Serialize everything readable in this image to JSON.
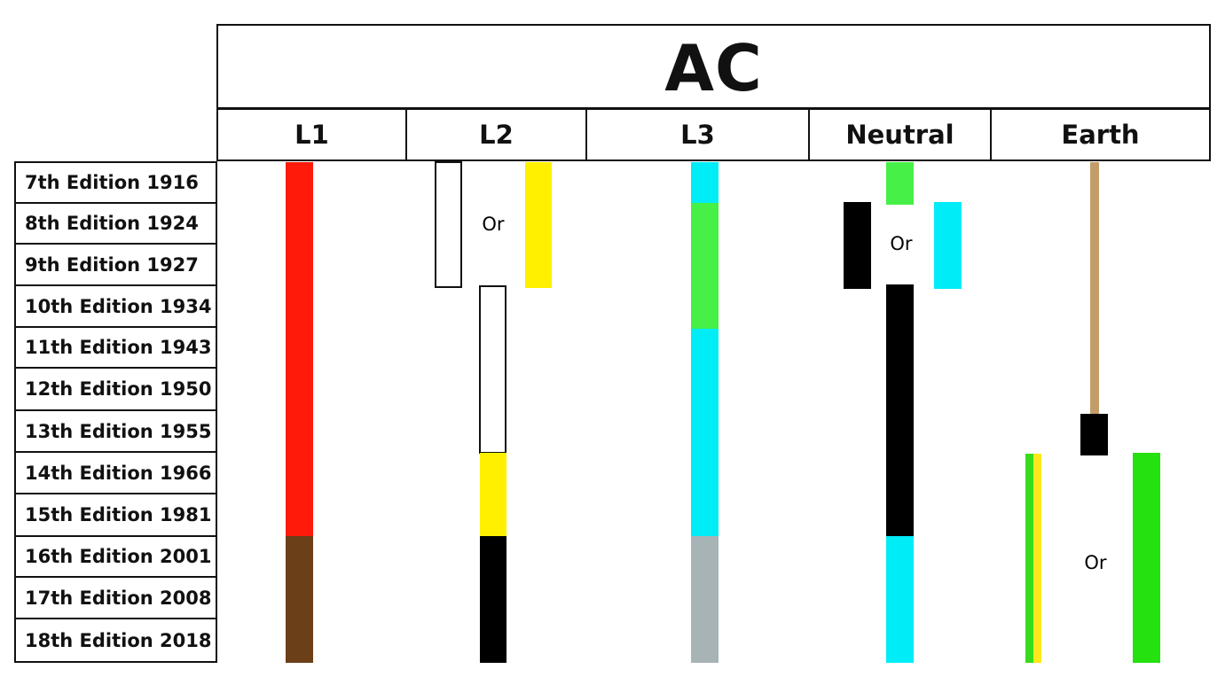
{
  "title": "AC",
  "columns": [
    {
      "key": "l1",
      "label": "L1"
    },
    {
      "key": "l2",
      "label": "L2"
    },
    {
      "key": "l3",
      "label": "L3"
    },
    {
      "key": "neutral",
      "label": "Neutral"
    },
    {
      "key": "earth",
      "label": "Earth"
    }
  ],
  "editions": [
    "7th Edition 1916",
    "8th Edition 1924",
    "9th Edition 1927",
    "10th Edition 1934",
    "11th Edition 1943",
    "12th Edition 1950",
    "13th Edition 1955",
    "14th Edition 1966",
    "15th Edition 1981",
    "16th Edition 2001",
    "17th Edition 2008",
    "18th Edition 2018"
  ],
  "or_label": "Or",
  "colors": {
    "red": "#ff1a0a",
    "brown": "#6b3f18",
    "yellow": "#fff000",
    "white": "#ffffff",
    "black": "#000000",
    "light_blue": "#00ecf7",
    "green": "#46f046",
    "grey": "#a8b3b6",
    "tan": "#c39d69",
    "green_yellow_green": "#38dc1c",
    "green_yellow_yellow": "#ffe81a",
    "earth_green": "#24e10f"
  }
}
